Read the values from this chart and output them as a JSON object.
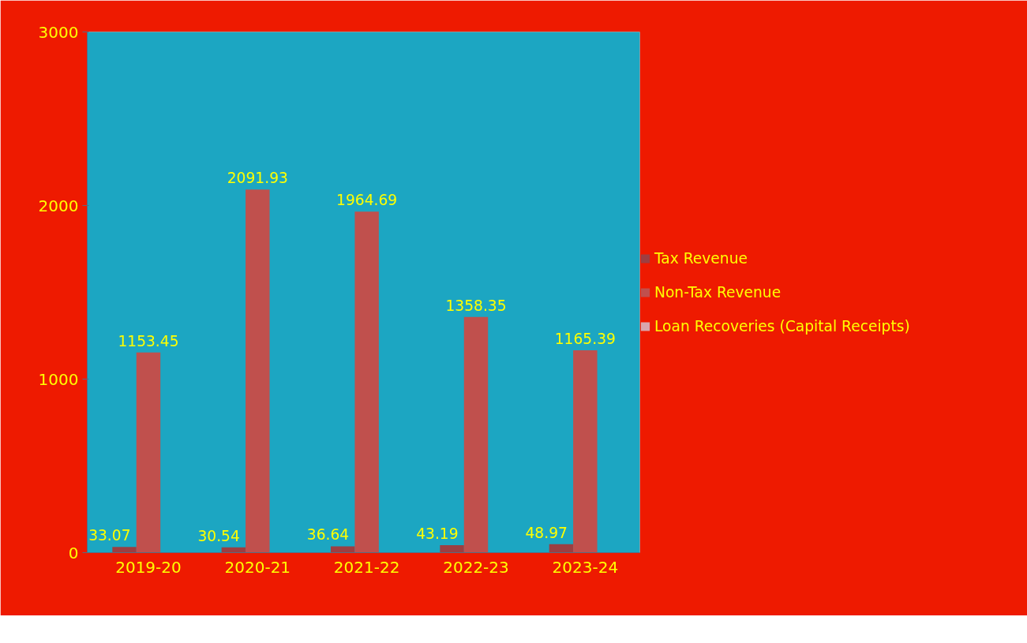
{
  "chart_data": {
    "type": "bar",
    "categories": [
      "2019-20",
      "2020-21",
      "2021-22",
      "2022-23",
      "2023-24"
    ],
    "series": [
      {
        "name": "Tax Revenue",
        "color": "#9c3f42",
        "values": [
          33.07,
          30.54,
          36.64,
          43.19,
          48.97
        ]
      },
      {
        "name": "Non-Tax Revenue",
        "color": "#c0504d",
        "values": [
          1153.45,
          2091.93,
          1964.69,
          1358.35,
          1165.39
        ]
      },
      {
        "name": "Loan Recoveries (Capital Receipts)",
        "color": "#d9a6ae",
        "values": [
          null,
          null,
          null,
          null,
          null
        ]
      }
    ],
    "ylim": [
      0,
      3000
    ],
    "yticks": [
      0,
      1000,
      2000,
      3000
    ],
    "grid": false,
    "legend": "right",
    "data_labels": true
  }
}
